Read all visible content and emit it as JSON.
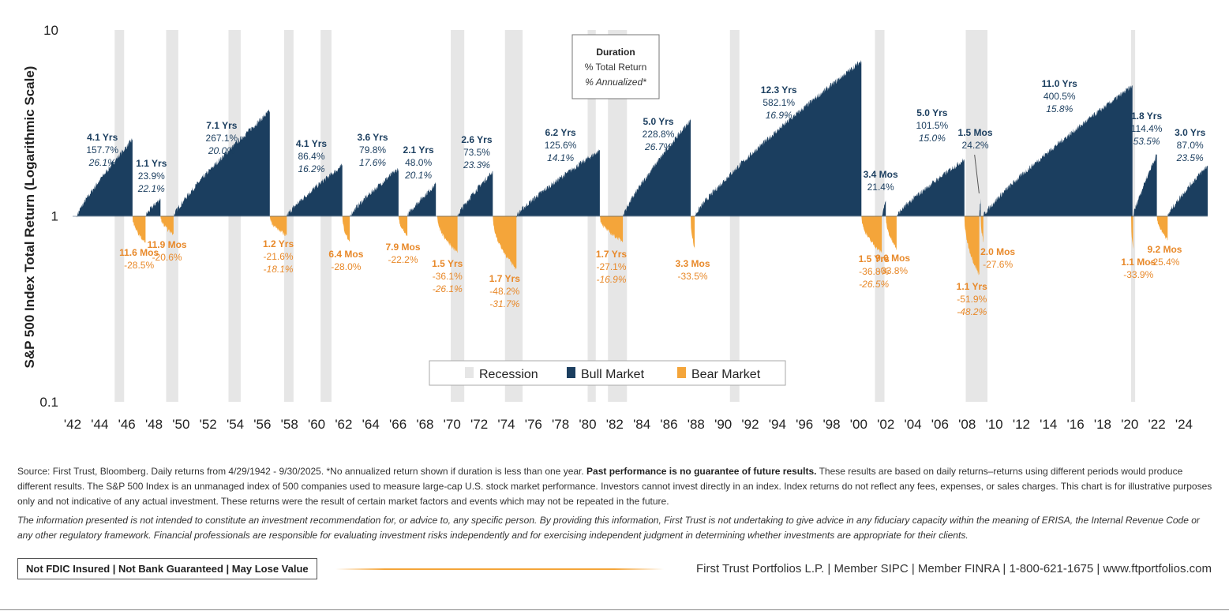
{
  "chart_data": {
    "type": "area",
    "title": "",
    "ylabel": "S&P 500 Index Total Return (Logarithmic Scale)",
    "xlabel": "",
    "yscale": "log",
    "ylim": [
      0.1,
      10
    ],
    "yticks": [
      "10",
      "1",
      "0.1"
    ],
    "x_start_year": 1942,
    "x_end_year": 2025.75,
    "xticks": [
      "'42",
      "'44",
      "'46",
      "'48",
      "'50",
      "'52",
      "'54",
      "'56",
      "'58",
      "'60",
      "'62",
      "'64",
      "'66",
      "'68",
      "'70",
      "'72",
      "'74",
      "'76",
      "'78",
      "'80",
      "'82",
      "'84",
      "'86",
      "'88",
      "'90",
      "'92",
      "'94",
      "'96",
      "'98",
      "'00",
      "'02",
      "'04",
      "'06",
      "'08",
      "'10",
      "'12",
      "'14",
      "'16",
      "'18",
      "'20",
      "'22",
      "'24"
    ],
    "legend": {
      "placement": "bottom-center",
      "items": [
        "Recession",
        "Bull Market",
        "Bear Market"
      ]
    },
    "key_box": {
      "title": "Duration",
      "line2": "% Total Return",
      "line3": "% Annualized*"
    },
    "colors": {
      "bull": "#1b3e5f",
      "bear": "#f4a53a",
      "recession": "#e6e6e6",
      "bull_text": "#1b3e5f",
      "bear_text": "#e8892a"
    },
    "recessions": [
      [
        1945.1,
        1945.8
      ],
      [
        1948.9,
        1949.8
      ],
      [
        1953.5,
        1954.4
      ],
      [
        1957.6,
        1958.3
      ],
      [
        1960.3,
        1961.1
      ],
      [
        1969.9,
        1970.9
      ],
      [
        1973.9,
        1975.2
      ],
      [
        1980.0,
        1980.6
      ],
      [
        1981.5,
        1982.9
      ],
      [
        1990.5,
        1991.2
      ],
      [
        2001.2,
        2001.9
      ],
      [
        2007.9,
        2009.5
      ],
      [
        2020.1,
        2020.4
      ]
    ],
    "bull_markets": [
      {
        "start": 1942.32,
        "end": 1946.42,
        "duration": "4.1 Yrs",
        "total": "157.7%",
        "annualized": "26.1%"
      },
      {
        "start": 1947.38,
        "end": 1948.48,
        "duration": "1.1 Yrs",
        "total": "23.9%",
        "annualized": "22.1%"
      },
      {
        "start": 1949.45,
        "end": 1956.55,
        "duration": "7.1 Yrs",
        "total": "267.1%",
        "annualized": "20.0%"
      },
      {
        "start": 1957.8,
        "end": 1961.9,
        "duration": "4.1 Yrs",
        "total": "86.4%",
        "annualized": "16.2%"
      },
      {
        "start": 1962.45,
        "end": 1966.05,
        "duration": "3.6 Yrs",
        "total": "79.8%",
        "annualized": "17.6%"
      },
      {
        "start": 1966.7,
        "end": 1968.8,
        "duration": "2.1 Yrs",
        "total": "48.0%",
        "annualized": "20.1%"
      },
      {
        "start": 1970.4,
        "end": 1973.0,
        "duration": "2.6 Yrs",
        "total": "73.5%",
        "annualized": "23.3%"
      },
      {
        "start": 1974.75,
        "end": 1980.9,
        "duration": "6.2 Yrs",
        "total": "125.6%",
        "annualized": "14.1%"
      },
      {
        "start": 1982.6,
        "end": 1987.6,
        "duration": "5.0 Yrs",
        "total": "228.8%",
        "annualized": "26.7%"
      },
      {
        "start": 1987.9,
        "end": 2000.2,
        "duration": "12.3 Yrs",
        "total": "582.1%",
        "annualized": "16.9%"
      },
      {
        "start": 2001.7,
        "end": 2002.0,
        "duration": "3.4 Mos",
        "total": "21.4%",
        "annualized": ""
      },
      {
        "start": 2002.8,
        "end": 2007.8,
        "duration": "5.0 Yrs",
        "total": "101.5%",
        "annualized": "15.0%"
      },
      {
        "start": 2008.9,
        "end": 2009.0,
        "duration": "1.5 Mos",
        "total": "24.2%",
        "annualized": ""
      },
      {
        "start": 2009.2,
        "end": 2020.2,
        "duration": "11.0 Yrs",
        "total": "400.5%",
        "annualized": "15.8%"
      },
      {
        "start": 2020.25,
        "end": 2022.0,
        "duration": "1.8 Yrs",
        "total": "114.4%",
        "annualized": "53.5%"
      },
      {
        "start": 2022.8,
        "end": 2025.75,
        "duration": "3.0 Yrs",
        "total": "87.0%",
        "annualized": "23.5%"
      }
    ],
    "bear_markets": [
      {
        "start": 1946.42,
        "end": 1947.38,
        "duration": "11.6 Mos",
        "total": "-28.5%",
        "annualized": ""
      },
      {
        "start": 1948.48,
        "end": 1949.45,
        "duration": "11.9 Mos",
        "total": "-20.6%",
        "annualized": ""
      },
      {
        "start": 1956.55,
        "end": 1957.8,
        "duration": "1.2 Yrs",
        "total": "-21.6%",
        "annualized": "-18.1%"
      },
      {
        "start": 1961.9,
        "end": 1962.45,
        "duration": "6.4 Mos",
        "total": "-28.0%",
        "annualized": ""
      },
      {
        "start": 1966.05,
        "end": 1966.7,
        "duration": "7.9 Mos",
        "total": "-22.2%",
        "annualized": ""
      },
      {
        "start": 1968.9,
        "end": 1970.4,
        "duration": "1.5 Yrs",
        "total": "-36.1%",
        "annualized": "-26.1%"
      },
      {
        "start": 1973.0,
        "end": 1974.75,
        "duration": "1.7 Yrs",
        "total": "-48.2%",
        "annualized": "-31.7%"
      },
      {
        "start": 1980.9,
        "end": 1982.6,
        "duration": "1.7 Yrs",
        "total": "-27.1%",
        "annualized": "-16.9%"
      },
      {
        "start": 1987.6,
        "end": 1987.9,
        "duration": "3.3 Mos",
        "total": "-33.5%",
        "annualized": ""
      },
      {
        "start": 2000.2,
        "end": 2001.7,
        "duration": "1.5 Yrs",
        "total": "-36.8%",
        "annualized": "-26.5%"
      },
      {
        "start": 2002.0,
        "end": 2002.8,
        "duration": "9.0 Mos",
        "total": "-33.8%",
        "annualized": ""
      },
      {
        "start": 2007.8,
        "end": 2008.9,
        "duration": "1.1 Yrs",
        "total": "-51.9%",
        "annualized": "-48.2%"
      },
      {
        "start": 2009.0,
        "end": 2009.2,
        "duration": "2.0 Mos",
        "total": "-27.6%",
        "annualized": ""
      },
      {
        "start": 2020.1,
        "end": 2020.25,
        "duration": "1.1 Mos",
        "total": "-33.9%",
        "annualized": ""
      },
      {
        "start": 2022.0,
        "end": 2022.8,
        "duration": "9.2 Mos",
        "total": "-25.4%",
        "annualized": ""
      }
    ]
  },
  "footer": {
    "source_text": "Source: First Trust, Bloomberg. Daily returns from 4/29/1942 - 9/30/2025. *No annualized return shown if duration is less than one year. ",
    "source_bold": "Past performance is no guarantee of future results.",
    "source_rest": " These results are based on daily returns–returns using different periods would produce different results. The S&P 500 Index is an unmanaged index of 500 companies used to measure large-cap U.S. stock market performance. Investors cannot invest directly in an index. Index returns do not reflect any fees, expenses, or sales charges. This chart is for illustrative purposes only and not indicative of any actual investment. These returns were the result of certain market factors and events which may not be repeated in the future.",
    "disclaimer": "The information presented is not intended to constitute an investment recommendation for, or advice to, any specific person. By providing this information, First Trust is not undertaking to give advice in any fiduciary capacity within the meaning of ERISA, the Internal Revenue Code or any other regulatory framework. Financial professionals are responsible for evaluating investment risks independently and for exercising independent judgment in determining whether investments are appropriate for their clients.",
    "badge": "Not FDIC Insured | Not Bank Guaranteed | May Lose Value",
    "contact": "First Trust Portfolios L.P. | Member SIPC | Member FINRA | 1-800-621-1675 | www.ftportfolios.com"
  }
}
